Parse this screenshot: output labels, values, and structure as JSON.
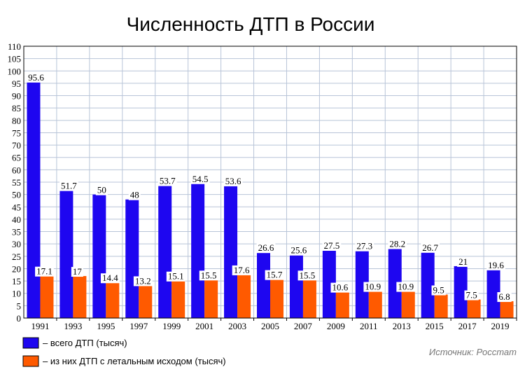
{
  "chart_data": {
    "type": "bar",
    "title": "Численность ДТП в России",
    "categories": [
      "1991",
      "1993",
      "1995",
      "1997",
      "1999",
      "2001",
      "2003",
      "2005",
      "2007",
      "2009",
      "2011",
      "2013",
      "2015",
      "2017",
      "2019"
    ],
    "series": [
      {
        "name": "– всего ДТП (тысяч)",
        "color": "#1e06f0",
        "values": [
          95.6,
          51.7,
          50,
          48,
          53.7,
          54.5,
          53.6,
          26.6,
          25.6,
          27.5,
          27.3,
          28.2,
          26.7,
          21,
          19.6
        ],
        "labels": [
          "95.6",
          "51.7",
          "50",
          "48",
          "53.7",
          "54.5",
          "53.6",
          "26.6",
          "25.6",
          "27.5",
          "27.3",
          "28.2",
          "26.7",
          "21",
          "19.6"
        ]
      },
      {
        "name": "– из них ДТП с летальным исходом (тысяч)",
        "color": "#ff5a00",
        "values": [
          17.1,
          17,
          14.4,
          13.2,
          15.1,
          15.5,
          17.6,
          15.7,
          15.5,
          10.6,
          10.9,
          10.9,
          9.5,
          7.5,
          6.8
        ],
        "labels": [
          "17.1",
          "17",
          "14.4",
          "13.2",
          "15.1",
          "15.5",
          "17.6",
          "15.7",
          "15.5",
          "10.6",
          "10.9",
          "10.9",
          "9.5",
          "7.5",
          "6.8"
        ]
      }
    ],
    "ylim": [
      0,
      110
    ],
    "yticks": [
      "0",
      "5",
      "10",
      "15",
      "20",
      "25",
      "30",
      "35",
      "40",
      "45",
      "50",
      "55",
      "60",
      "65",
      "70",
      "75",
      "80",
      "85",
      "90",
      "95",
      "100",
      "105",
      "110"
    ],
    "grid": true,
    "legend_position": "bottom-left",
    "source": "Источник: Росстат"
  }
}
